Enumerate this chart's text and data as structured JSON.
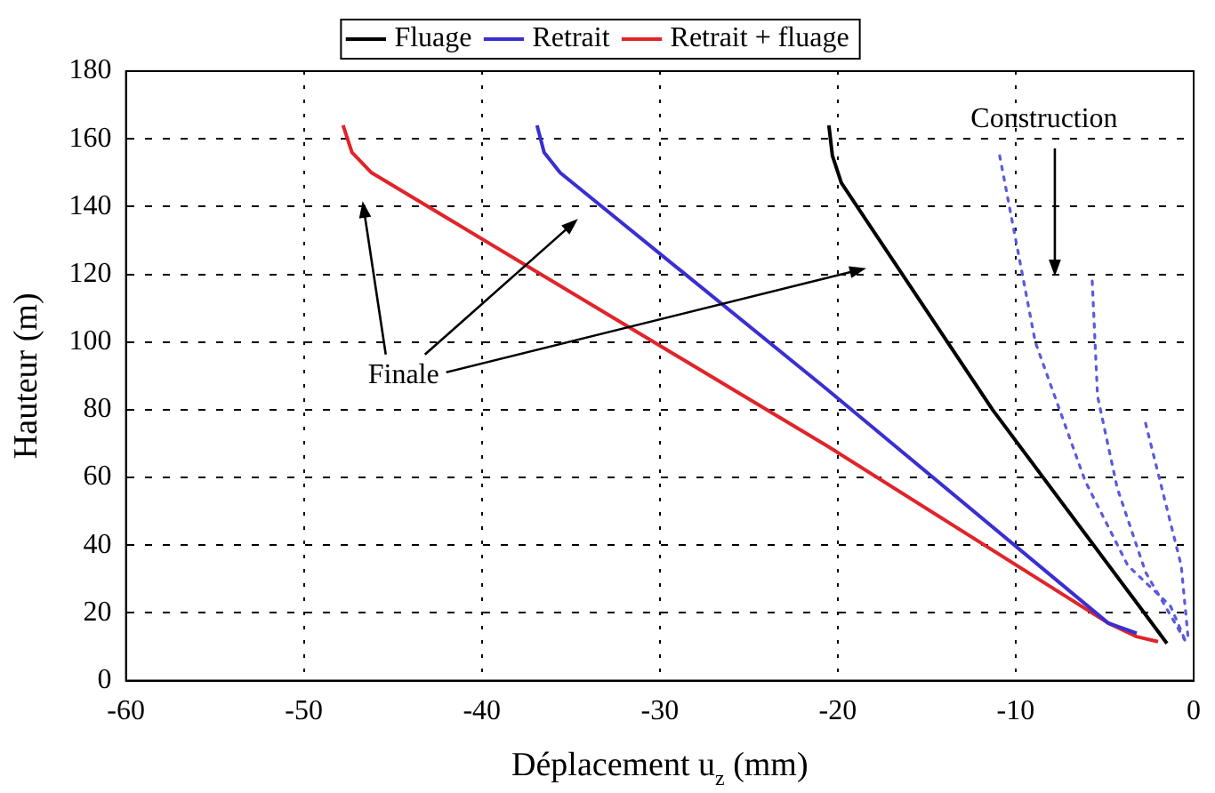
{
  "chart_data": {
    "type": "line",
    "xlabel": "Déplacement u$_{z}$ (mm)",
    "ylabel": "Hauteur (m)",
    "xlim": [
      -60,
      0
    ],
    "xticks": [
      -60,
      -50,
      -40,
      -30,
      -20,
      -10,
      0
    ],
    "ylim": [
      0,
      180
    ],
    "yticks": [
      0,
      20,
      40,
      60,
      80,
      100,
      120,
      140,
      160,
      180
    ],
    "grid": true,
    "legend": "top",
    "marker": "none",
    "line_style": "solid",
    "series": [
      {
        "name": "Fluage",
        "color": "#000000",
        "x": [
          -20.5,
          -20.3,
          -19.8,
          -11.3,
          -1.5
        ],
        "values": [
          164,
          155,
          147,
          80,
          11
        ]
      },
      {
        "name": "Retrait",
        "color": "#3a2fd0",
        "x": [
          -36.9,
          -36.5,
          -35.6,
          -20.6,
          -4.8,
          -3.2
        ],
        "values": [
          164,
          156,
          150,
          86,
          17,
          14
        ]
      },
      {
        "name": "Retrait + fluage",
        "color": "#e0242a",
        "x": [
          -47.8,
          -47.3,
          -46.2,
          -20.5,
          -4.8,
          -3.2,
          -2
        ],
        "values": [
          164,
          156,
          150,
          69,
          17,
          13,
          11.5
        ]
      },
      {
        "color": "#5a5adc",
        "line_style": "dotted",
        "x": [
          -10.9,
          -8.9,
          -6.1,
          -3.7,
          -1.3,
          -0.4
        ],
        "values": [
          155,
          100,
          59,
          34,
          22,
          11
        ]
      },
      {
        "color": "#5a5adc",
        "line_style": "dotted",
        "x": [
          -5.7,
          -5.4,
          -4.3,
          -2.7,
          -0.5
        ],
        "values": [
          118,
          84,
          57,
          32,
          12
        ]
      },
      {
        "color": "#5a5adc",
        "line_style": "dotted",
        "x": [
          -2.7,
          -0.7,
          -0.3
        ],
        "values": [
          76,
          34,
          12
        ]
      }
    ],
    "annotations": [
      "Construction",
      "Finale"
    ]
  }
}
